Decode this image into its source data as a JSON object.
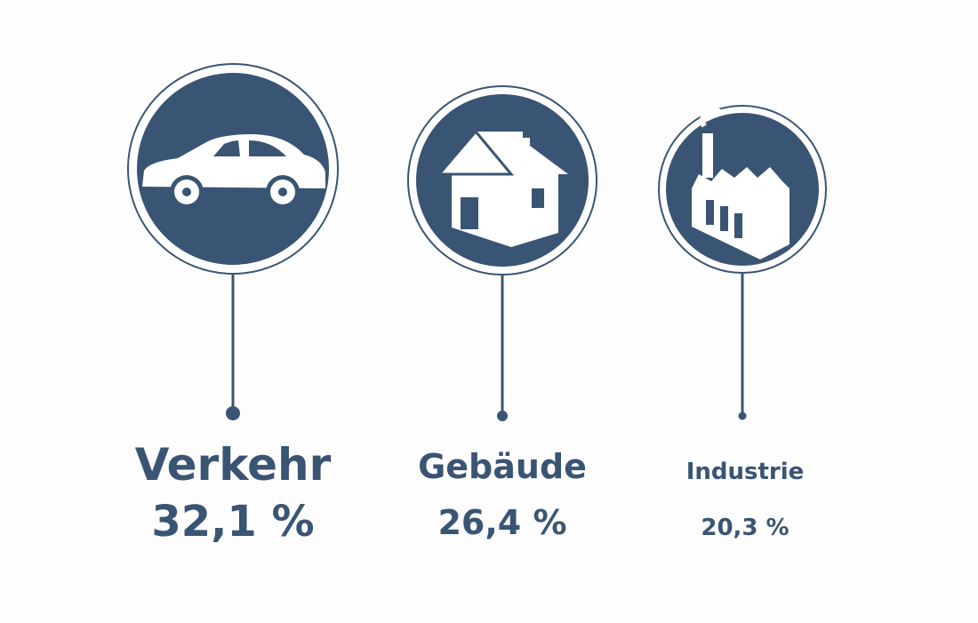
{
  "items": [
    {
      "label": "Verkehr",
      "value": "32,1 %"
    },
    {
      "label": "Gebäude",
      "value": "26,4 %"
    },
    {
      "label": "Industrie",
      "value": "20,3 %"
    }
  ]
}
